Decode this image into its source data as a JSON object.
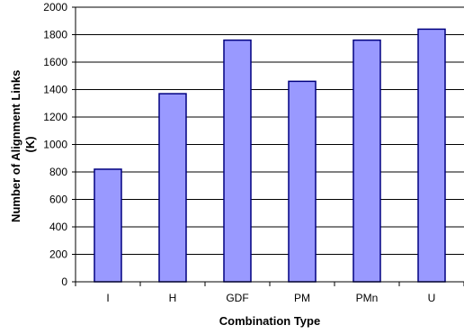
{
  "chart_data": {
    "type": "bar",
    "title": "",
    "xlabel": "Combination Type",
    "ylabel_lines": [
      "Number of Alignment Links",
      "(K)"
    ],
    "categories": [
      "I",
      "H",
      "GDF",
      "PM",
      "PMn",
      "U"
    ],
    "values": [
      820,
      1370,
      1760,
      1460,
      1760,
      1840
    ],
    "ylim": [
      0,
      2000
    ],
    "yticks": [
      0,
      200,
      400,
      600,
      800,
      1000,
      1200,
      1400,
      1600,
      1800,
      2000
    ],
    "grid": true,
    "legend": "none",
    "bar_color": "#9999ff",
    "bar_edge_color": "#000080"
  }
}
